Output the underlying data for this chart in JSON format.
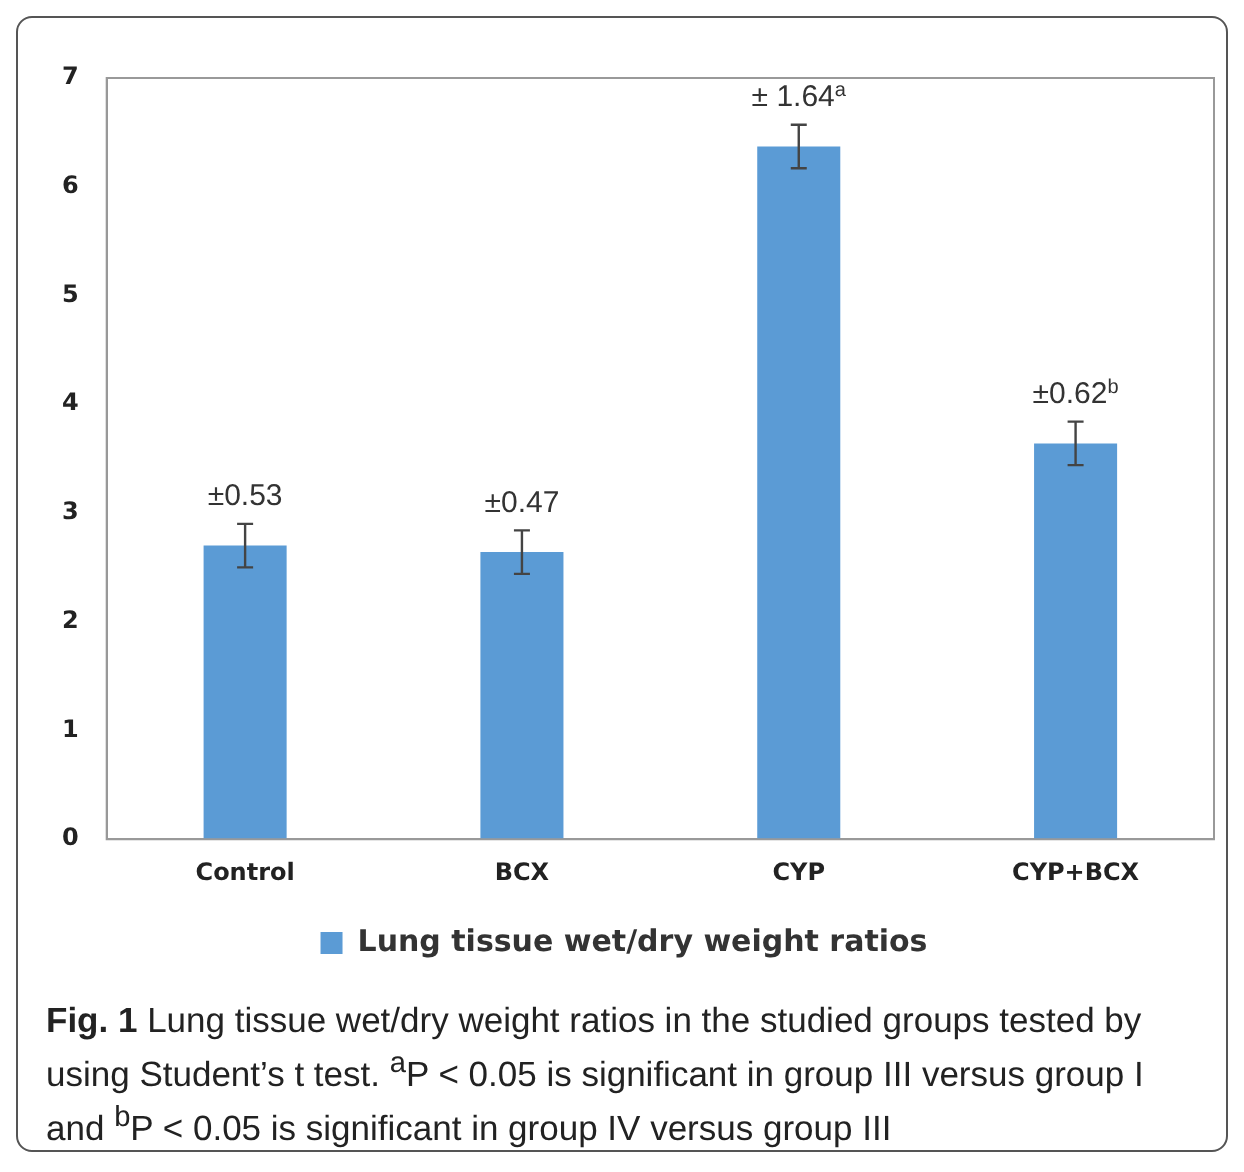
{
  "chart_data": {
    "type": "bar",
    "categories": [
      "Control",
      "BCX",
      "CYP",
      "CYP+BCX"
    ],
    "series": [
      {
        "name": "Lung tissue wet/dry weight ratios",
        "color": "#5b9bd5",
        "values": [
          2.7,
          2.64,
          6.37,
          3.64
        ],
        "errors": [
          0.2,
          0.2,
          0.2,
          0.2
        ]
      }
    ],
    "ylim": [
      0,
      7
    ],
    "yticks": [
      0,
      1,
      2,
      3,
      4,
      5,
      6,
      7
    ],
    "grid": false,
    "legend": "bottom",
    "annotations": [
      {
        "text": "±0.53",
        "x": "Control",
        "y": 2.9
      },
      {
        "text": "±0.47",
        "x": "BCX",
        "y": 2.84
      },
      {
        "text": "± 1.64$^{a}$",
        "x": "CYP",
        "y": 6.57
      },
      {
        "text": "±0.62$^{b}$",
        "x": "CYP+BCX",
        "y": 3.84
      },
      "Fig. 1  Lung tissue wet/dry weight ratios in the studied groups tested by using Student’s t test. $^{a}$P < 0.05 is significant in group III versus group I and $^{b}$P < 0.05 is significant in group IV versus group III"
    ]
  }
}
